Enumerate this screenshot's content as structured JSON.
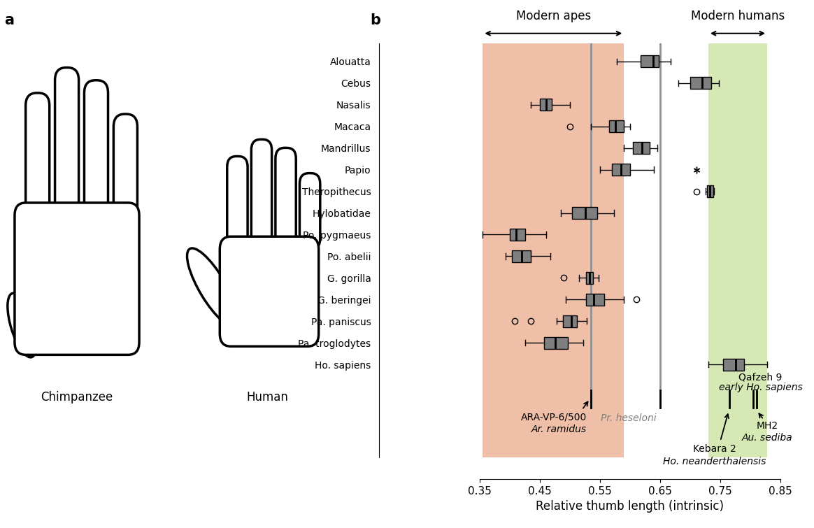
{
  "chart_data": {
    "type": "boxplot",
    "orientation": "horizontal",
    "panel_labels": [
      "a",
      "b"
    ],
    "hand_labels": [
      "Chimpanzee",
      "Human"
    ],
    "xlabel": "Relative thumb length (intrinsic)",
    "xlim": [
      0.35,
      0.85
    ],
    "xticks": [
      0.35,
      0.45,
      0.55,
      0.65,
      0.75,
      0.85
    ],
    "color": "#7f7f7f",
    "categories": [
      "Alouatta",
      "Cebus",
      "Nasalis",
      "Macaca",
      "Mandrillus",
      "Papio",
      "Theropithecus",
      "Hylobatidae",
      "Po. pygmaeus",
      "Po. abelii",
      "G. gorilla",
      "G. beringei",
      "Pa. paniscus",
      "Pa. troglodytes",
      "Ho. sapiens"
    ],
    "boxes": [
      {
        "whislo": 0.578,
        "q1": 0.618,
        "med": 0.638,
        "q3": 0.648,
        "whishi": 0.668,
        "outliers": [],
        "extremes": []
      },
      {
        "whislo": 0.68,
        "q1": 0.7,
        "med": 0.72,
        "q3": 0.735,
        "whishi": 0.748,
        "outliers": [],
        "extremes": []
      },
      {
        "whislo": 0.435,
        "q1": 0.45,
        "med": 0.46,
        "q3": 0.47,
        "whishi": 0.5,
        "outliers": [],
        "extremes": []
      },
      {
        "whislo": 0.535,
        "q1": 0.565,
        "med": 0.575,
        "q3": 0.59,
        "whishi": 0.6,
        "outliers": [
          0.5
        ],
        "extremes": []
      },
      {
        "whislo": 0.59,
        "q1": 0.605,
        "med": 0.62,
        "q3": 0.632,
        "whishi": 0.645,
        "outliers": [],
        "extremes": []
      },
      {
        "whislo": 0.55,
        "q1": 0.57,
        "med": 0.585,
        "q3": 0.6,
        "whishi": 0.64,
        "outliers": [],
        "extremes": [
          0.71
        ]
      },
      {
        "whislo": 0.726,
        "q1": 0.728,
        "med": 0.733,
        "q3": 0.738,
        "whishi": 0.74,
        "outliers": [
          0.71
        ],
        "extremes": []
      },
      {
        "whislo": 0.485,
        "q1": 0.503,
        "med": 0.525,
        "q3": 0.545,
        "whishi": 0.573,
        "outliers": [],
        "extremes": []
      },
      {
        "whislo": 0.355,
        "q1": 0.4,
        "med": 0.41,
        "q3": 0.425,
        "whishi": 0.46,
        "outliers": [],
        "extremes": []
      },
      {
        "whislo": 0.393,
        "q1": 0.403,
        "med": 0.42,
        "q3": 0.435,
        "whishi": 0.468,
        "outliers": [],
        "extremes": []
      },
      {
        "whislo": 0.515,
        "q1": 0.527,
        "med": 0.533,
        "q3": 0.538,
        "whishi": 0.548,
        "outliers": [
          0.49
        ],
        "extremes": []
      },
      {
        "whislo": 0.493,
        "q1": 0.527,
        "med": 0.54,
        "q3": 0.557,
        "whishi": 0.59,
        "outliers": [
          0.61
        ],
        "extremes": []
      },
      {
        "whislo": 0.478,
        "q1": 0.488,
        "med": 0.502,
        "q3": 0.512,
        "whishi": 0.528,
        "outliers": [
          0.408,
          0.435
        ],
        "extremes": []
      },
      {
        "whislo": 0.425,
        "q1": 0.457,
        "med": 0.475,
        "q3": 0.497,
        "whishi": 0.522,
        "outliers": [],
        "extremes": []
      },
      {
        "whislo": 0.73,
        "q1": 0.755,
        "med": 0.775,
        "q3": 0.79,
        "whishi": 0.828,
        "outliers": [],
        "extremes": []
      }
    ],
    "regions": [
      {
        "label": "Modern apes",
        "range": [
          0.355,
          0.59
        ],
        "color": "#efbfa8"
      },
      {
        "label": "Modern humans",
        "range": [
          0.73,
          0.828
        ],
        "color": "#d6e9b4"
      }
    ],
    "fossils": [
      {
        "specimen": "ARA-VP-6/500",
        "taxon": "Ar. ramidus",
        "value": 0.535,
        "line": true
      },
      {
        "specimen": null,
        "taxon": "Pr. heseloni",
        "value": 0.65,
        "line": true
      },
      {
        "specimen": "Kebara 2",
        "taxon": "Ho. neanderthalensis",
        "value": 0.765,
        "line": false
      },
      {
        "specimen": "Qafzeh 9",
        "taxon": "early Ho. sapiens",
        "value": 0.805,
        "line": false
      },
      {
        "specimen": "MH2",
        "taxon": "Au. sediba",
        "value": 0.81,
        "line": false
      }
    ]
  }
}
